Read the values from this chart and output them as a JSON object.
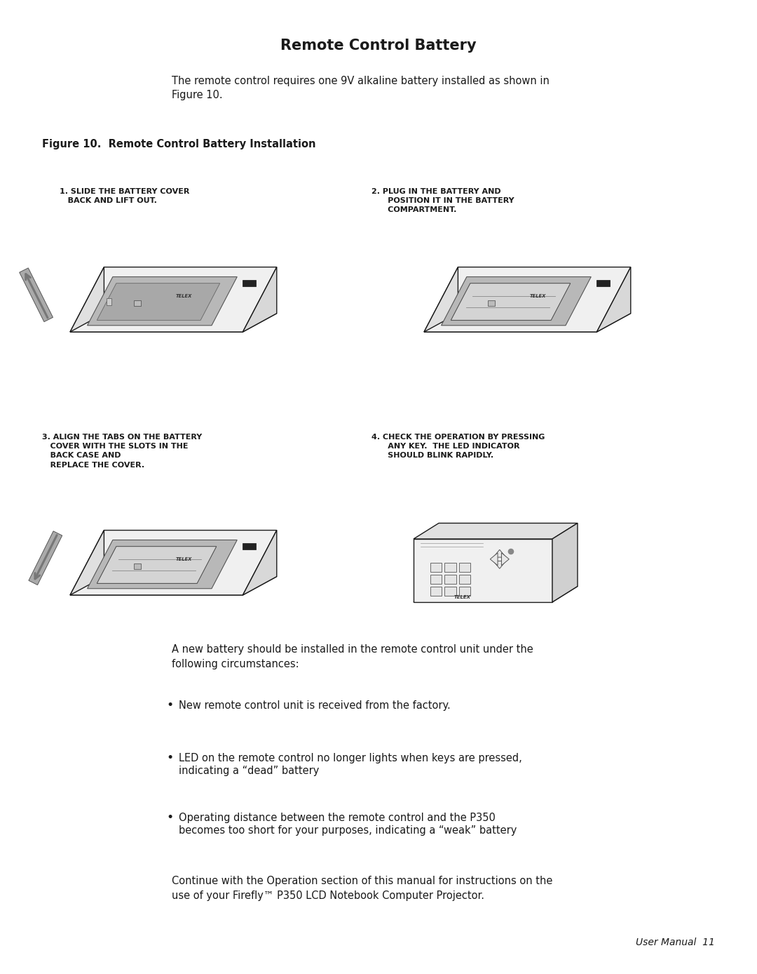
{
  "title": "Remote Control Battery",
  "figure_label": "Figure 10.  Remote Control Battery Installation",
  "intro_text": "The remote control requires one 9V alkaline battery installed as shown in\nFigure 10.",
  "step1_label": "1. SLIDE THE BATTERY COVER\n   BACK AND LIFT OUT.",
  "step2_label": "2. PLUG IN THE BATTERY AND\n      POSITION IT IN THE BATTERY\n      COMPARTMENT.",
  "step3_label": "3. ALIGN THE TABS ON THE BATTERY\n   COVER WITH THE SLOTS IN THE\n   BACK CASE AND\n   REPLACE THE COVER.",
  "step4_label": "4. CHECK THE OPERATION BY PRESSING\n      ANY KEY.  THE LED INDICATOR\n      SHOULD BLINK RAPIDLY.",
  "bullet1": "New remote control unit is received from the factory.",
  "bullet2_line1": "LED on the remote control no longer lights when keys are pressed,",
  "bullet2_line2": "indicating a “dead” battery",
  "bullet3_line1": "Operating distance between the remote control and the P350",
  "bullet3_line2": "becomes too short for your purposes, indicating a “weak” battery",
  "battery_intro": "A new battery should be installed in the remote control unit under the\nfollowing circumstances:",
  "closing_text": "Continue with the Operation section of this manual for instructions on the\nuse of your Firefly™ P350 LCD Notebook Computer Projector.",
  "footer": "User Manual  11",
  "bg_color": "#ffffff",
  "text_color": "#1a1a1a",
  "title_fontsize": 15,
  "body_fontsize": 10.5,
  "step_label_fontsize": 8.0,
  "figure_label_fontsize": 10.5
}
